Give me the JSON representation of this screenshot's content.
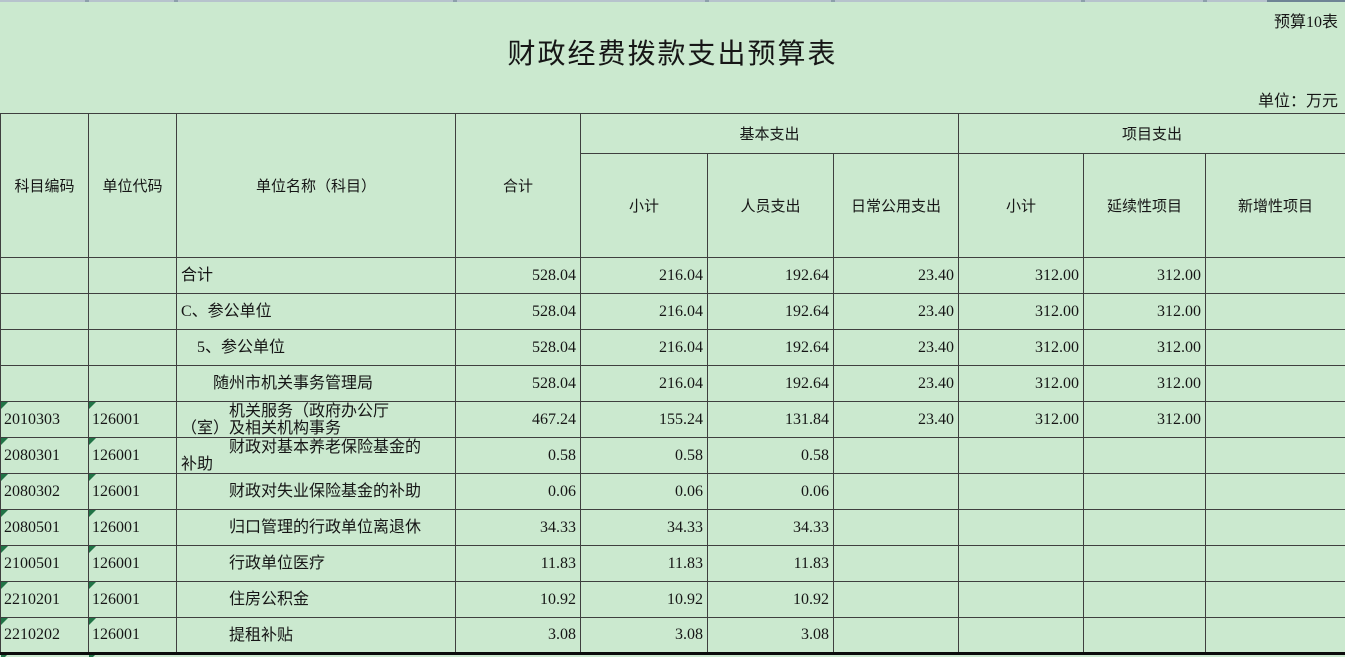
{
  "page": {
    "background_color": "#cbe9cf",
    "grid_color": "#3f3f3f",
    "triangle_color": "#217346"
  },
  "header": {
    "sheet_label": "预算10表",
    "title": "财政经费拨款支出预算表",
    "unit_label": "单位：万元"
  },
  "table": {
    "column_keys": [
      "subject-code",
      "unit-code",
      "unit-name",
      "total",
      "basic-subtotal",
      "personnel",
      "daily-public",
      "project-subtotal",
      "continuing-project",
      "new-project"
    ],
    "col_headers": {
      "subject_code": "科目编码",
      "unit_code": "单位代码",
      "unit_name": "单位名称（科目）",
      "total": "合计",
      "basic_group": "基本支出",
      "basic_subtotal": "小计",
      "personnel": "人员支出",
      "daily_public": "日常公用支出",
      "project_group": "项目支出",
      "project_subtotal": "小计",
      "continuing": "延续性项目",
      "new_item": "新增性项目"
    },
    "rows": [
      {
        "cells": [
          "",
          "",
          "合计",
          "528.04",
          "216.04",
          "192.64",
          "23.40",
          "312.00",
          "312.00",
          ""
        ]
      },
      {
        "cells": [
          "",
          "",
          "C、参公单位",
          "528.04",
          "216.04",
          "192.64",
          "23.40",
          "312.00",
          "312.00",
          ""
        ]
      },
      {
        "cells": [
          "",
          "",
          "　5、参公单位",
          "528.04",
          "216.04",
          "192.64",
          "23.40",
          "312.00",
          "312.00",
          ""
        ]
      },
      {
        "cells": [
          "",
          "",
          "　　随州市机关事务管理局",
          "528.04",
          "216.04",
          "192.64",
          "23.40",
          "312.00",
          "312.00",
          ""
        ]
      },
      {
        "cells": [
          "2010303",
          "126001",
          "　　　机关服务（政府办公厅\n（室）及相关机构事务",
          "467.24",
          "155.24",
          "131.84",
          "23.40",
          "312.00",
          "312.00",
          ""
        ]
      },
      {
        "cells": [
          "2080301",
          "126001",
          "　　　财政对基本养老保险基金的\n补助",
          "0.58",
          "0.58",
          "0.58",
          "",
          "",
          "",
          ""
        ]
      },
      {
        "cells": [
          "2080302",
          "126001",
          "　　　财政对失业保险基金的补助",
          "0.06",
          "0.06",
          "0.06",
          "",
          "",
          "",
          ""
        ]
      },
      {
        "cells": [
          "2080501",
          "126001",
          "　　　归口管理的行政单位离退休",
          "34.33",
          "34.33",
          "34.33",
          "",
          "",
          "",
          ""
        ]
      },
      {
        "cells": [
          "2100501",
          "126001",
          "　　　行政单位医疗",
          "11.83",
          "11.83",
          "11.83",
          "",
          "",
          "",
          ""
        ]
      },
      {
        "cells": [
          "2210201",
          "126001",
          "　　　住房公积金",
          "10.92",
          "10.92",
          "10.92",
          "",
          "",
          "",
          ""
        ]
      },
      {
        "cells": [
          "2210202",
          "126001",
          "　　　提租补贴",
          "3.08",
          "3.08",
          "3.08",
          "",
          "",
          "",
          ""
        ]
      }
    ]
  }
}
